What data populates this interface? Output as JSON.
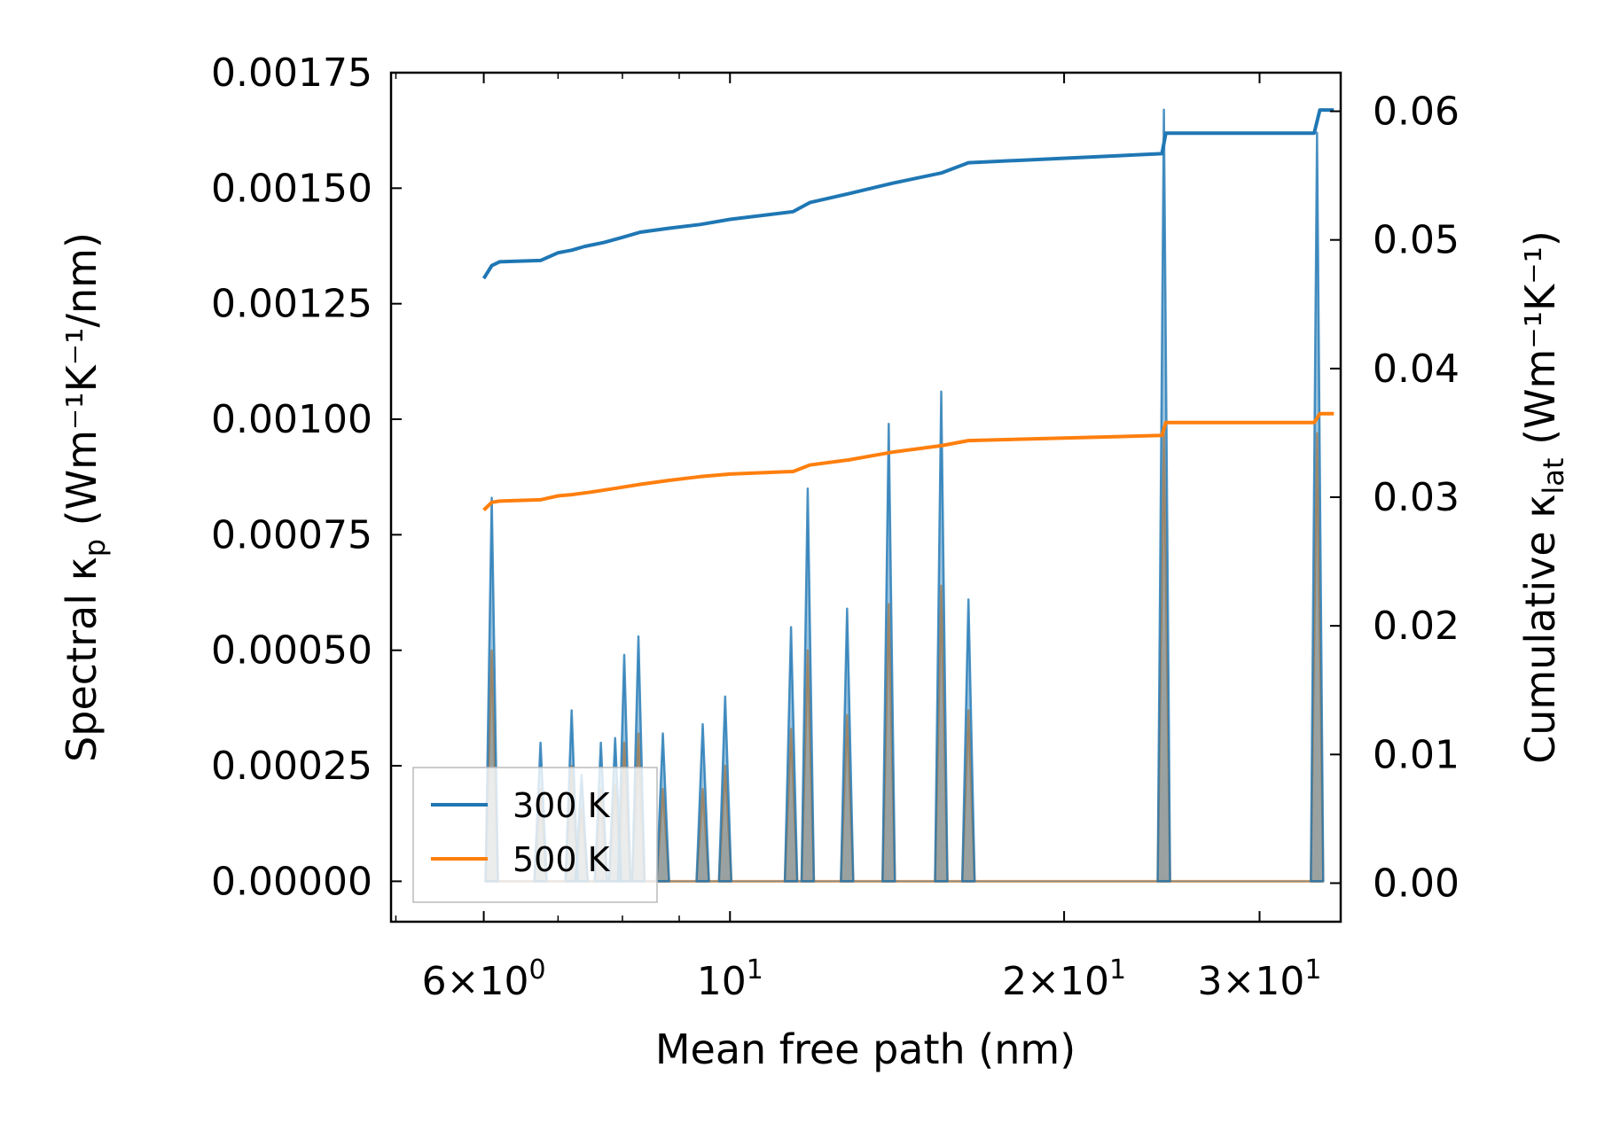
{
  "chart_data": {
    "type": "line",
    "xlabel": "Mean free path (nm)",
    "ylabel_left": {
      "prefix": "Spectral κ",
      "sub": "p",
      "suffix": " (Wm⁻¹K⁻¹/nm)"
    },
    "ylabel_right": {
      "prefix": "Cumulative κ",
      "sub": "lat",
      "suffix": " (Wm⁻¹K⁻¹)"
    },
    "x_scale": "log",
    "xlim": [
      4.95,
      35.5
    ],
    "ylim_left": [
      -8.75e-05,
      0.00175
    ],
    "ylim_right": [
      -0.003,
      0.063
    ],
    "x_ticks": [
      {
        "value": 6,
        "base": "6",
        "times": "×",
        "ten": "10",
        "exp": "0"
      },
      {
        "value": 10,
        "base": "",
        "times": "",
        "ten": "10",
        "exp": "1"
      },
      {
        "value": 20,
        "base": "2",
        "times": "×",
        "ten": "10",
        "exp": "1"
      },
      {
        "value": 30,
        "base": "3",
        "times": "×",
        "ten": "10",
        "exp": "1"
      }
    ],
    "x_minor_ticks": [
      5,
      7,
      8,
      9
    ],
    "y_left_ticks": [
      "0.00000",
      "0.00025",
      "0.00050",
      "0.00075",
      "0.00100",
      "0.00125",
      "0.00150",
      "0.00175"
    ],
    "y_right_ticks": [
      "0.00",
      "0.01",
      "0.02",
      "0.03",
      "0.04",
      "0.05",
      "0.06"
    ],
    "legend": {
      "location": "lower left",
      "entries": [
        {
          "label": "300 K",
          "color": "#1f77b4"
        },
        {
          "label": "500 K",
          "color": "#ff7f0e"
        }
      ]
    },
    "spectral_300K": [
      {
        "x": 6.1,
        "y": 0.00083
      },
      {
        "x": 6.75,
        "y": 0.0003
      },
      {
        "x": 7.2,
        "y": 0.00037
      },
      {
        "x": 7.35,
        "y": 0.00023
      },
      {
        "x": 7.65,
        "y": 0.0003
      },
      {
        "x": 7.88,
        "y": 0.00031
      },
      {
        "x": 8.03,
        "y": 0.00049
      },
      {
        "x": 8.27,
        "y": 0.00053
      },
      {
        "x": 8.7,
        "y": 0.00032
      },
      {
        "x": 9.45,
        "y": 0.00034
      },
      {
        "x": 9.9,
        "y": 0.0004
      },
      {
        "x": 11.35,
        "y": 0.00055
      },
      {
        "x": 11.75,
        "y": 0.00085
      },
      {
        "x": 12.75,
        "y": 0.00059
      },
      {
        "x": 13.9,
        "y": 0.00099
      },
      {
        "x": 15.5,
        "y": 0.00106
      },
      {
        "x": 16.4,
        "y": 0.00061
      },
      {
        "x": 24.6,
        "y": 0.00167
      },
      {
        "x": 33.8,
        "y": 0.00162
      }
    ],
    "spectral_500K": [
      {
        "x": 6.1,
        "y": 0.0005
      },
      {
        "x": 6.75,
        "y": 0.0002
      },
      {
        "x": 7.2,
        "y": 0.00025
      },
      {
        "x": 7.35,
        "y": 0.00016
      },
      {
        "x": 7.65,
        "y": 0.0002
      },
      {
        "x": 7.88,
        "y": 0.00021
      },
      {
        "x": 8.03,
        "y": 0.0003
      },
      {
        "x": 8.27,
        "y": 0.00032
      },
      {
        "x": 8.7,
        "y": 0.0002
      },
      {
        "x": 9.45,
        "y": 0.0002
      },
      {
        "x": 9.9,
        "y": 0.00025
      },
      {
        "x": 11.35,
        "y": 0.00033
      },
      {
        "x": 11.75,
        "y": 0.0005
      },
      {
        "x": 12.75,
        "y": 0.00036
      },
      {
        "x": 13.9,
        "y": 0.0006
      },
      {
        "x": 15.5,
        "y": 0.00064
      },
      {
        "x": 16.4,
        "y": 0.00037
      },
      {
        "x": 24.6,
        "y": 0.00097
      },
      {
        "x": 33.8,
        "y": 0.00097
      }
    ],
    "cumulative_300K": [
      [
        6.0,
        0.047
      ],
      [
        6.1,
        0.048
      ],
      [
        6.2,
        0.0483
      ],
      [
        6.75,
        0.0484
      ],
      [
        7.0,
        0.049
      ],
      [
        7.2,
        0.0492
      ],
      [
        7.4,
        0.0495
      ],
      [
        7.7,
        0.0498
      ],
      [
        8.0,
        0.0502
      ],
      [
        8.3,
        0.0506
      ],
      [
        8.8,
        0.0509
      ],
      [
        9.4,
        0.0512
      ],
      [
        10.0,
        0.0516
      ],
      [
        11.4,
        0.0522
      ],
      [
        11.8,
        0.0529
      ],
      [
        12.8,
        0.0536
      ],
      [
        14.0,
        0.0544
      ],
      [
        15.5,
        0.0552
      ],
      [
        16.4,
        0.056
      ],
      [
        24.5,
        0.0567
      ],
      [
        24.7,
        0.0583
      ],
      [
        33.6,
        0.0583
      ],
      [
        34.0,
        0.0601
      ],
      [
        35.0,
        0.0601
      ]
    ],
    "cumulative_500K": [
      [
        6.0,
        0.029
      ],
      [
        6.1,
        0.0296
      ],
      [
        6.2,
        0.0297
      ],
      [
        6.75,
        0.0298
      ],
      [
        7.0,
        0.0301
      ],
      [
        7.2,
        0.0302
      ],
      [
        7.5,
        0.0304
      ],
      [
        7.9,
        0.0307
      ],
      [
        8.3,
        0.031
      ],
      [
        8.8,
        0.0313
      ],
      [
        9.4,
        0.0316
      ],
      [
        10.0,
        0.0318
      ],
      [
        11.4,
        0.032
      ],
      [
        11.8,
        0.0325
      ],
      [
        12.8,
        0.0329
      ],
      [
        14.0,
        0.0335
      ],
      [
        15.5,
        0.034
      ],
      [
        16.4,
        0.0344
      ],
      [
        24.5,
        0.0348
      ],
      [
        24.7,
        0.0358
      ],
      [
        33.6,
        0.0358
      ],
      [
        34.0,
        0.0365
      ],
      [
        35.0,
        0.0365
      ]
    ]
  }
}
